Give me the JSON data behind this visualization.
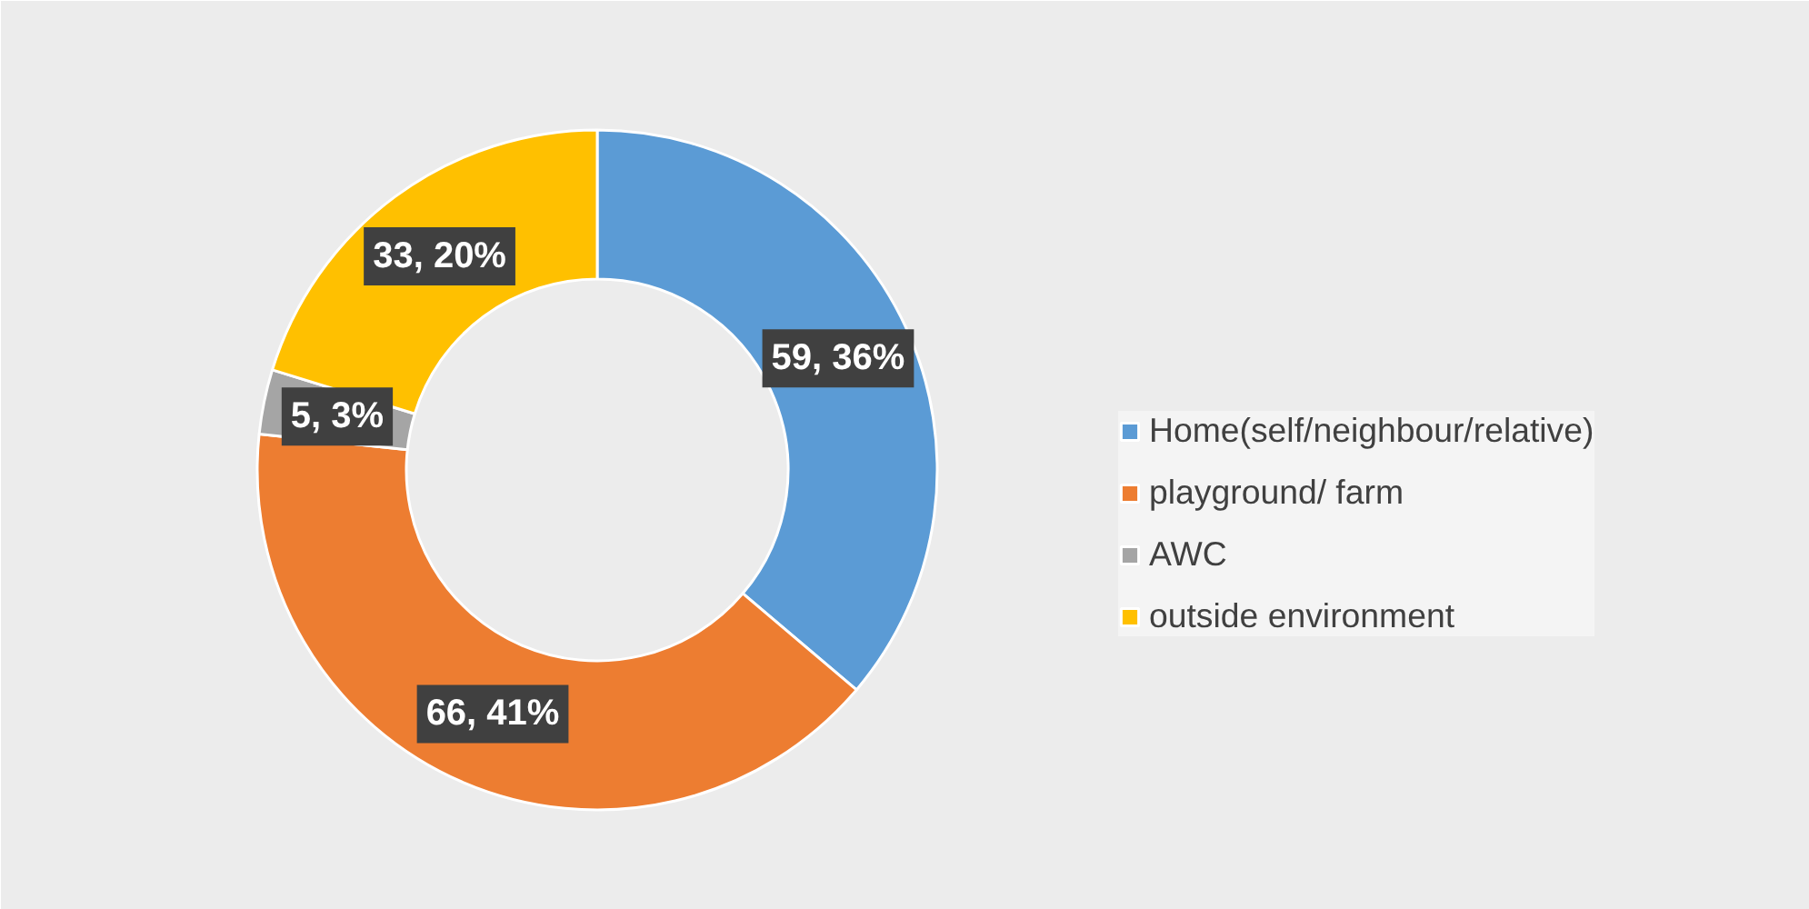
{
  "chart_data": {
    "type": "donut",
    "categories": [
      "Home(self/neighbour/relative)",
      "playground/ farm",
      "AWC",
      "outside environment"
    ],
    "values": [
      59,
      66,
      5,
      33
    ],
    "colors": [
      "#5b9bd5",
      "#ed7d31",
      "#a5a5a5",
      "#ffc000"
    ],
    "value_labels": [
      "59, 36%",
      "66, 41%",
      "5, 3%",
      "33, 20%"
    ],
    "legend": "right"
  }
}
